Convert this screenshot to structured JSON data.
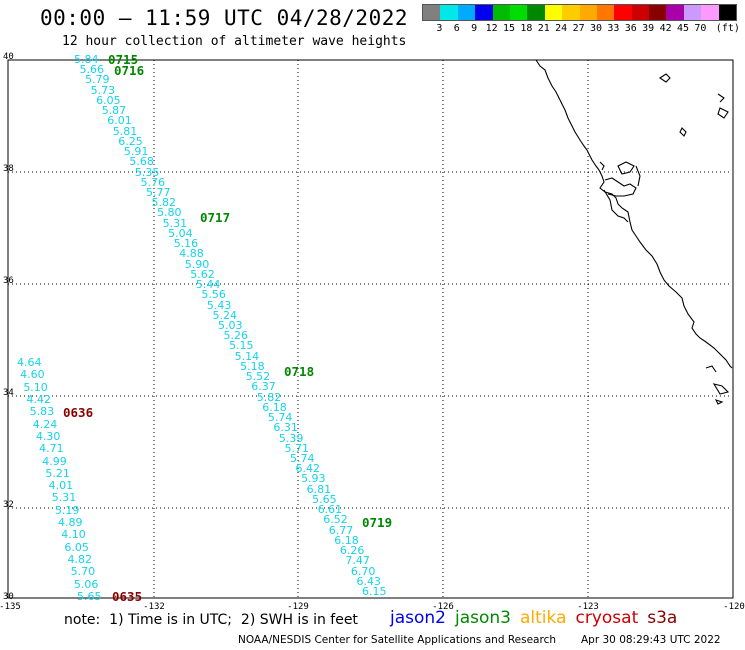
{
  "header": {
    "title": "00:00 — 11:59 UTC 04/28/2022",
    "subtitle": "12 hour collection of altimeter wave heights"
  },
  "colorbar": {
    "colors": [
      "#808080",
      "#00e8e8",
      "#00aaff",
      "#0000ee",
      "#00bb00",
      "#00dd00",
      "#008800",
      "#ffff00",
      "#ffcc00",
      "#ffaa00",
      "#ff7700",
      "#ff0000",
      "#cc0000",
      "#880000",
      "#aa00aa",
      "#cc99ff",
      "#ff99ff",
      "#000000"
    ],
    "labels": [
      "3",
      "6",
      "9",
      "12",
      "15",
      "18",
      "21",
      "24",
      "27",
      "30",
      "33",
      "36",
      "39",
      "42",
      "45",
      "70"
    ],
    "unit": "(ft)"
  },
  "axes": {
    "lat_labels": [
      "40",
      "38",
      "36",
      "34",
      "32",
      "30"
    ],
    "lon_labels": [
      "-135",
      "-132",
      "-129",
      "-126",
      "-123",
      "-120"
    ]
  },
  "tracks": {
    "color": "#14d4e8",
    "east_values": [
      "5.84",
      "5.66",
      "5.79",
      "5.73",
      "6.05",
      "5.87",
      "6.01",
      "5.81",
      "6.25",
      "5.91",
      "5.68",
      "5.35",
      "5.76",
      "5.77",
      "5.82",
      "5.80",
      "5.31",
      "5.04",
      "5.16",
      "4.88",
      "5.90",
      "5.62",
      "5.44",
      "5.56",
      "5.43",
      "5.24",
      "5.03",
      "5.26",
      "5.15",
      "5.14",
      "5.18",
      "5.52",
      "6.37",
      "5.82",
      "6.18",
      "5.74",
      "6.31",
      "5.39",
      "5.71",
      "5.74",
      "6.42",
      "5.93",
      "6.81",
      "5.65",
      "6.61",
      "6.52",
      "6.77",
      "6.18",
      "6.26",
      "7.47",
      "6.70",
      "6.43",
      "6.15"
    ],
    "west_values": [
      "4.64",
      "4.60",
      "5.10",
      "4.42",
      "5.83",
      "4.24",
      "4.30",
      "4.71",
      "4.99",
      "5.21",
      "4.01",
      "5.31",
      "5.19",
      "4.89",
      "4.10",
      "6.05",
      "4.82",
      "5.70",
      "5.06",
      "5.65"
    ]
  },
  "time_tags": [
    {
      "text": "0715",
      "color": "#008800"
    },
    {
      "text": "0716",
      "color": "#008800"
    },
    {
      "text": "0717",
      "color": "#008800"
    },
    {
      "text": "0718",
      "color": "#008800"
    },
    {
      "text": "0719",
      "color": "#008800"
    },
    {
      "text": "0636",
      "color": "#880000"
    },
    {
      "text": "0635",
      "color": "#880000"
    }
  ],
  "footer": {
    "note": "note:  1) Time is in UTC;  2) SWH is in feet",
    "satellites": [
      {
        "name": "jason2",
        "color": "#0000ee"
      },
      {
        "name": "jason3",
        "color": "#008800"
      },
      {
        "name": "altika",
        "color": "#ffaa00"
      },
      {
        "name": "cryosat",
        "color": "#cc0000"
      },
      {
        "name": "s3a",
        "color": "#880000"
      }
    ],
    "credit": "NOAA/NESDIS Center for Satellite Applications and Research",
    "generated": "Apr 30 08:29:43 UTC 2022"
  }
}
